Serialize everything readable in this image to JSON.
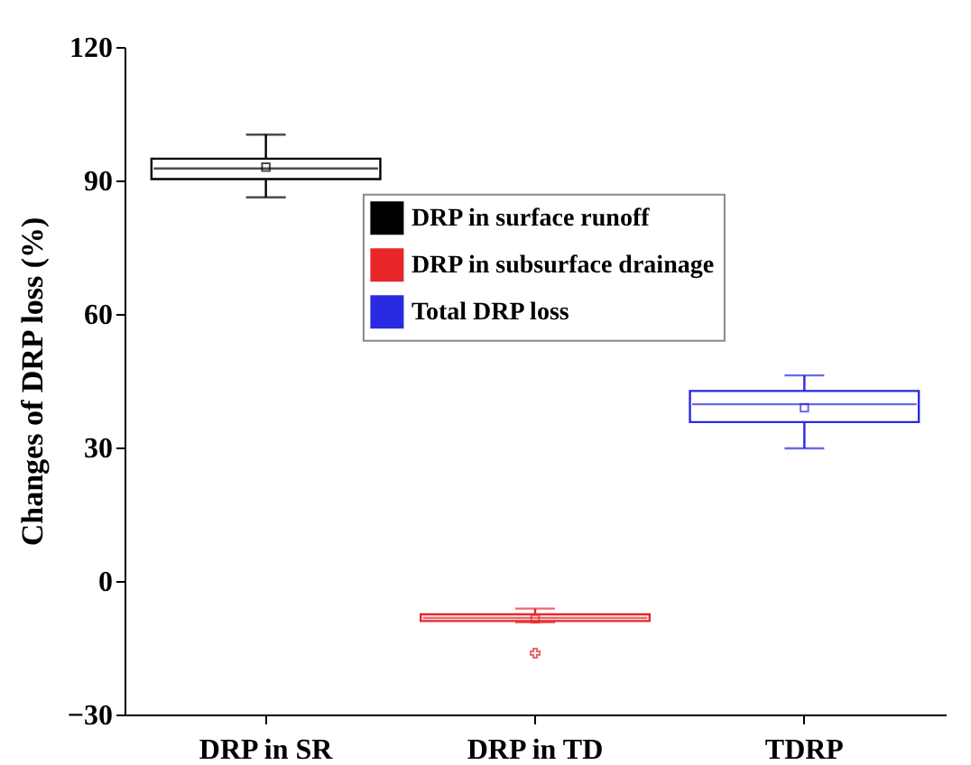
{
  "chart_data": {
    "type": "box",
    "ylabel": "Changes of DRP loss (%)",
    "categories": [
      "DRP in SR",
      "DRP in TD",
      "TDRP"
    ],
    "ylim": [
      -30,
      120
    ],
    "yticks": [
      -30,
      0,
      30,
      60,
      90,
      120
    ],
    "legend": "top right",
    "series": [
      {
        "name": "DRP in surface runoff",
        "color": "#000000",
        "boxes": [
          {
            "low": 86.2,
            "q1": 90.3,
            "median": 92.7,
            "q3": 94.9,
            "high": 100.3,
            "mean": 93
          },
          null,
          null
        ]
      },
      {
        "name": "DRP in subsurface drainage",
        "color": "#e8262a",
        "boxes": [
          null,
          {
            "low": -9.3,
            "q1": -9,
            "median": -8.3,
            "q3": -7.5,
            "high": -6.2,
            "mean": -8.5,
            "outliers": [
              -16.2
            ]
          },
          null
        ]
      },
      {
        "name": "Total DRP loss",
        "color": "#2a2ae0",
        "boxes": [
          null,
          null,
          {
            "low": 29.8,
            "q1": 35.7,
            "median": 39.7,
            "q3": 42.7,
            "high": 46.2,
            "mean": 38.9
          }
        ]
      }
    ]
  }
}
